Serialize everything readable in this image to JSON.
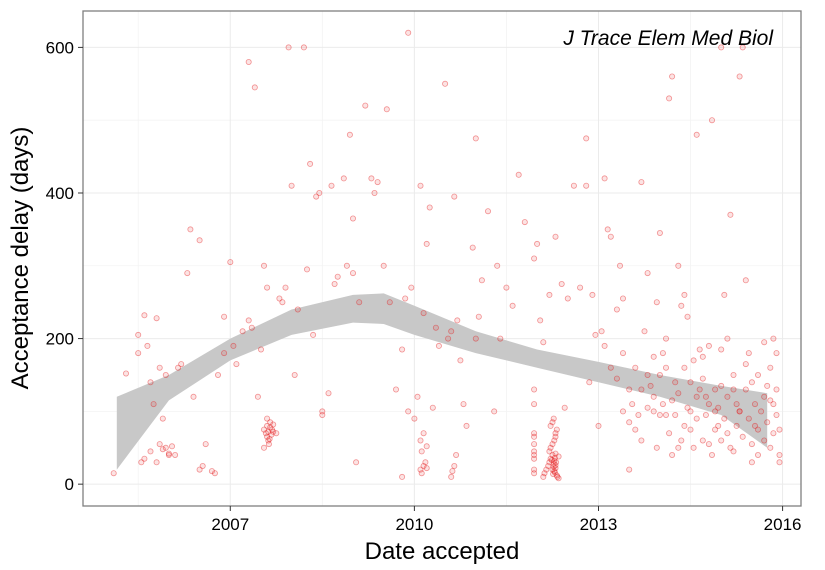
{
  "chart_data": {
    "type": "scatter",
    "annotation": "J Trace Elem Med Biol",
    "xlabel": "Date accepted",
    "ylabel": "Acceptance delay (days)",
    "xlim": [
      2004.6,
      2016.3
    ],
    "ylim": [
      -30,
      650
    ],
    "x_ticks": [
      2007,
      2010,
      2013,
      2016
    ],
    "y_ticks": [
      0,
      200,
      400,
      600
    ],
    "grid": true,
    "point_color": "#e41a1c",
    "ribbon_color": "#c8c8c8",
    "smooth_band": {
      "x": [
        2005.15,
        2006.0,
        2007.0,
        2008.0,
        2009.0,
        2009.5,
        2010.0,
        2011.0,
        2012.0,
        2013.0,
        2014.0,
        2015.0,
        2015.75
      ],
      "lower": [
        20,
        115,
        170,
        205,
        222,
        220,
        205,
        180,
        160,
        140,
        120,
        95,
        50
      ],
      "upper": [
        120,
        150,
        200,
        240,
        260,
        262,
        245,
        210,
        185,
        168,
        150,
        135,
        125
      ]
    },
    "points": [
      [
        2005.1,
        15
      ],
      [
        2005.3,
        152
      ],
      [
        2005.5,
        205
      ],
      [
        2005.5,
        180
      ],
      [
        2005.6,
        232
      ],
      [
        2005.65,
        190
      ],
      [
        2005.7,
        140
      ],
      [
        2005.75,
        110
      ],
      [
        2005.8,
        228
      ],
      [
        2005.85,
        160
      ],
      [
        2005.9,
        90
      ],
      [
        2005.95,
        150
      ],
      [
        2005.55,
        30
      ],
      [
        2005.6,
        35
      ],
      [
        2005.7,
        45
      ],
      [
        2005.8,
        30
      ],
      [
        2005.85,
        55
      ],
      [
        2005.9,
        48
      ],
      [
        2005.95,
        50
      ],
      [
        2006.0,
        40
      ],
      [
        2006.0,
        42
      ],
      [
        2006.05,
        52
      ],
      [
        2006.1,
        40
      ],
      [
        2006.15,
        160
      ],
      [
        2006.2,
        165
      ],
      [
        2006.3,
        290
      ],
      [
        2006.35,
        350
      ],
      [
        2006.4,
        120
      ],
      [
        2006.5,
        335
      ],
      [
        2006.5,
        20
      ],
      [
        2006.55,
        25
      ],
      [
        2006.6,
        55
      ],
      [
        2006.7,
        18
      ],
      [
        2006.75,
        15
      ],
      [
        2006.8,
        150
      ],
      [
        2006.9,
        230
      ],
      [
        2006.9,
        180
      ],
      [
        2007.0,
        305
      ],
      [
        2007.05,
        190
      ],
      [
        2007.1,
        165
      ],
      [
        2007.2,
        210
      ],
      [
        2007.3,
        225
      ],
      [
        2007.3,
        580
      ],
      [
        2007.35,
        215
      ],
      [
        2007.4,
        545
      ],
      [
        2007.45,
        120
      ],
      [
        2007.5,
        185
      ],
      [
        2007.55,
        300
      ],
      [
        2007.6,
        270
      ],
      [
        2007.7,
        72
      ],
      [
        2007.75,
        70
      ],
      [
        2007.8,
        255
      ],
      [
        2007.85,
        250
      ],
      [
        2007.9,
        270
      ],
      [
        2007.95,
        600
      ],
      [
        2008.0,
        410
      ],
      [
        2008.05,
        150
      ],
      [
        2008.1,
        240
      ],
      [
        2008.2,
        600
      ],
      [
        2008.25,
        295
      ],
      [
        2008.3,
        440
      ],
      [
        2008.35,
        205
      ],
      [
        2008.4,
        395
      ],
      [
        2008.45,
        400
      ],
      [
        2008.5,
        95
      ],
      [
        2008.5,
        100
      ],
      [
        2008.6,
        125
      ],
      [
        2008.65,
        410
      ],
      [
        2008.7,
        275
      ],
      [
        2008.75,
        285
      ],
      [
        2008.85,
        420
      ],
      [
        2008.9,
        300
      ],
      [
        2008.95,
        480
      ],
      [
        2009.0,
        290
      ],
      [
        2009.0,
        365
      ],
      [
        2009.05,
        30
      ],
      [
        2009.1,
        250
      ],
      [
        2009.2,
        520
      ],
      [
        2009.3,
        420
      ],
      [
        2009.35,
        400
      ],
      [
        2009.4,
        415
      ],
      [
        2009.5,
        300
      ],
      [
        2009.55,
        515
      ],
      [
        2009.6,
        250
      ],
      [
        2009.7,
        130
      ],
      [
        2009.8,
        10
      ],
      [
        2009.8,
        185
      ],
      [
        2009.85,
        255
      ],
      [
        2009.9,
        100
      ],
      [
        2009.9,
        620
      ],
      [
        2009.95,
        270
      ],
      [
        2010.0,
        90
      ],
      [
        2010.05,
        120
      ],
      [
        2010.1,
        410
      ],
      [
        2010.15,
        235
      ],
      [
        2010.2,
        330
      ],
      [
        2010.25,
        380
      ],
      [
        2010.3,
        105
      ],
      [
        2010.35,
        215
      ],
      [
        2010.4,
        190
      ],
      [
        2010.5,
        550
      ],
      [
        2010.55,
        200
      ],
      [
        2010.6,
        210
      ],
      [
        2010.65,
        395
      ],
      [
        2010.7,
        225
      ],
      [
        2010.75,
        170
      ],
      [
        2010.8,
        110
      ],
      [
        2010.85,
        80
      ],
      [
        2010.95,
        325
      ],
      [
        2011.0,
        200
      ],
      [
        2011.0,
        475
      ],
      [
        2011.05,
        230
      ],
      [
        2011.1,
        280
      ],
      [
        2011.2,
        375
      ],
      [
        2011.3,
        100
      ],
      [
        2011.35,
        300
      ],
      [
        2011.4,
        200
      ],
      [
        2011.5,
        270
      ],
      [
        2011.6,
        245
      ],
      [
        2011.7,
        425
      ],
      [
        2011.8,
        360
      ],
      [
        2011.95,
        40
      ],
      [
        2011.95,
        55
      ],
      [
        2011.95,
        45
      ],
      [
        2011.95,
        35
      ],
      [
        2011.95,
        20
      ],
      [
        2011.95,
        15
      ],
      [
        2011.95,
        65
      ],
      [
        2011.95,
        70
      ],
      [
        2011.95,
        110
      ],
      [
        2011.95,
        130
      ],
      [
        2011.95,
        310
      ],
      [
        2012.0,
        330
      ],
      [
        2012.05,
        225
      ],
      [
        2012.1,
        195
      ],
      [
        2012.2,
        260
      ],
      [
        2012.3,
        340
      ],
      [
        2012.4,
        275
      ],
      [
        2012.45,
        105
      ],
      [
        2012.5,
        255
      ],
      [
        2012.6,
        410
      ],
      [
        2012.7,
        270
      ],
      [
        2012.8,
        410
      ],
      [
        2012.8,
        475
      ],
      [
        2012.85,
        140
      ],
      [
        2012.9,
        260
      ],
      [
        2012.95,
        205
      ],
      [
        2013.0,
        80
      ],
      [
        2013.1,
        420
      ],
      [
        2013.15,
        350
      ],
      [
        2013.2,
        340
      ],
      [
        2013.3,
        240
      ],
      [
        2013.35,
        300
      ],
      [
        2013.4,
        255
      ],
      [
        2013.5,
        20
      ],
      [
        2013.6,
        75
      ],
      [
        2013.7,
        415
      ],
      [
        2013.75,
        210
      ],
      [
        2013.8,
        290
      ],
      [
        2013.85,
        135
      ],
      [
        2013.9,
        100
      ],
      [
        2013.95,
        250
      ],
      [
        2014.0,
        345
      ],
      [
        2014.05,
        180
      ],
      [
        2014.1,
        200
      ],
      [
        2014.15,
        530
      ],
      [
        2014.2,
        560
      ],
      [
        2014.25,
        140
      ],
      [
        2014.3,
        300
      ],
      [
        2014.35,
        245
      ],
      [
        2014.4,
        260
      ],
      [
        2014.45,
        230
      ],
      [
        2014.5,
        100
      ],
      [
        2014.55,
        170
      ],
      [
        2014.6,
        480
      ],
      [
        2014.65,
        185
      ],
      [
        2014.7,
        175
      ],
      [
        2014.75,
        120
      ],
      [
        2014.8,
        190
      ],
      [
        2014.85,
        500
      ],
      [
        2014.9,
        130
      ],
      [
        2014.95,
        80
      ],
      [
        2015.0,
        185
      ],
      [
        2015.0,
        600
      ],
      [
        2015.05,
        260
      ],
      [
        2015.1,
        200
      ],
      [
        2015.15,
        370
      ],
      [
        2015.2,
        130
      ],
      [
        2015.25,
        110
      ],
      [
        2015.3,
        560
      ],
      [
        2015.35,
        600
      ],
      [
        2015.4,
        280
      ],
      [
        2015.45,
        180
      ],
      [
        2015.5,
        30
      ],
      [
        2015.55,
        80
      ],
      [
        2015.6,
        150
      ],
      [
        2015.7,
        195
      ],
      [
        2015.75,
        135
      ],
      [
        2015.8,
        50
      ],
      [
        2015.85,
        110
      ],
      [
        2015.9,
        130
      ],
      [
        2015.95,
        40
      ],
      [
        2013.05,
        210
      ],
      [
        2013.1,
        190
      ],
      [
        2013.2,
        160
      ],
      [
        2013.3,
        145
      ],
      [
        2013.4,
        180
      ],
      [
        2013.5,
        130
      ],
      [
        2013.55,
        110
      ],
      [
        2013.65,
        95
      ],
      [
        2013.7,
        60
      ],
      [
        2013.8,
        150
      ],
      [
        2013.9,
        120
      ],
      [
        2013.95,
        50
      ],
      [
        2014.0,
        150
      ],
      [
        2014.05,
        110
      ],
      [
        2014.1,
        95
      ],
      [
        2014.15,
        70
      ],
      [
        2014.2,
        40
      ],
      [
        2014.25,
        95
      ],
      [
        2014.3,
        125
      ],
      [
        2014.35,
        60
      ],
      [
        2014.4,
        80
      ],
      [
        2014.45,
        105
      ],
      [
        2014.5,
        75
      ],
      [
        2014.55,
        50
      ],
      [
        2014.6,
        90
      ],
      [
        2014.65,
        130
      ],
      [
        2014.7,
        60
      ],
      [
        2014.75,
        95
      ],
      [
        2014.8,
        110
      ],
      [
        2014.85,
        40
      ],
      [
        2014.9,
        75
      ],
      [
        2014.95,
        105
      ],
      [
        2015.0,
        60
      ],
      [
        2015.05,
        90
      ],
      [
        2015.1,
        120
      ],
      [
        2015.15,
        50
      ],
      [
        2015.2,
        150
      ],
      [
        2015.25,
        80
      ],
      [
        2015.3,
        100
      ],
      [
        2015.35,
        65
      ],
      [
        2015.4,
        130
      ],
      [
        2015.45,
        90
      ],
      [
        2015.5,
        55
      ],
      [
        2015.55,
        110
      ],
      [
        2015.6,
        75
      ],
      [
        2015.65,
        100
      ],
      [
        2015.7,
        60
      ],
      [
        2015.75,
        85
      ],
      [
        2015.8,
        115
      ],
      [
        2015.85,
        70
      ],
      [
        2015.9,
        95
      ],
      [
        2015.95,
        30
      ],
      [
        2015.95,
        75
      ],
      [
        2015.9,
        180
      ],
      [
        2015.85,
        200
      ],
      [
        2015.8,
        160
      ],
      [
        2015.7,
        120
      ],
      [
        2015.6,
        40
      ],
      [
        2015.5,
        140
      ],
      [
        2015.4,
        165
      ],
      [
        2015.3,
        100
      ],
      [
        2015.2,
        45
      ],
      [
        2015.1,
        70
      ],
      [
        2015.0,
        135
      ],
      [
        2014.9,
        100
      ],
      [
        2014.8,
        55
      ],
      [
        2014.7,
        145
      ],
      [
        2014.6,
        120
      ],
      [
        2014.5,
        140
      ],
      [
        2014.4,
        160
      ],
      [
        2014.3,
        50
      ],
      [
        2014.2,
        115
      ],
      [
        2014.1,
        160
      ],
      [
        2014.0,
        95
      ],
      [
        2013.9,
        175
      ],
      [
        2013.8,
        105
      ],
      [
        2013.7,
        130
      ],
      [
        2013.6,
        160
      ],
      [
        2013.5,
        85
      ],
      [
        2013.4,
        100
      ],
      [
        2007.55,
        75
      ],
      [
        2007.58,
        70
      ],
      [
        2007.6,
        80
      ],
      [
        2007.6,
        65
      ],
      [
        2007.62,
        72
      ],
      [
        2007.62,
        60
      ],
      [
        2007.63,
        55
      ],
      [
        2007.65,
        85
      ],
      [
        2007.65,
        78
      ],
      [
        2007.67,
        68
      ],
      [
        2007.68,
        75
      ],
      [
        2007.7,
        82
      ],
      [
        2007.55,
        50
      ],
      [
        2007.6,
        90
      ],
      [
        2007.64,
        62
      ],
      [
        2010.1,
        20
      ],
      [
        2010.12,
        15
      ],
      [
        2010.15,
        25
      ],
      [
        2010.18,
        30
      ],
      [
        2010.2,
        22
      ],
      [
        2010.6,
        10
      ],
      [
        2010.62,
        18
      ],
      [
        2010.65,
        25
      ],
      [
        2010.68,
        40
      ],
      [
        2010.1,
        60
      ],
      [
        2010.12,
        45
      ],
      [
        2010.15,
        70
      ],
      [
        2010.2,
        52
      ],
      [
        2012.1,
        10
      ],
      [
        2012.12,
        15
      ],
      [
        2012.15,
        20
      ],
      [
        2012.18,
        25
      ],
      [
        2012.2,
        30
      ],
      [
        2012.22,
        35
      ],
      [
        2012.25,
        40
      ],
      [
        2012.27,
        28
      ],
      [
        2012.28,
        18
      ],
      [
        2012.3,
        22
      ],
      [
        2012.32,
        12
      ],
      [
        2012.35,
        8
      ],
      [
        2012.2,
        45
      ],
      [
        2012.22,
        50
      ],
      [
        2012.25,
        55
      ],
      [
        2012.28,
        60
      ],
      [
        2012.3,
        65
      ],
      [
        2012.22,
        80
      ],
      [
        2012.25,
        85
      ],
      [
        2012.27,
        90
      ],
      [
        2012.3,
        70
      ],
      [
        2012.32,
        75
      ],
      [
        2012.3,
        42
      ],
      [
        2012.35,
        38
      ],
      [
        2012.25,
        20
      ],
      [
        2012.27,
        24
      ],
      [
        2012.28,
        32
      ],
      [
        2012.29,
        36
      ],
      [
        2012.3,
        26
      ],
      [
        2012.31,
        30
      ],
      [
        2012.26,
        14
      ],
      [
        2012.29,
        16
      ],
      [
        2012.33,
        10
      ],
      [
        2012.24,
        33
      ]
    ]
  }
}
